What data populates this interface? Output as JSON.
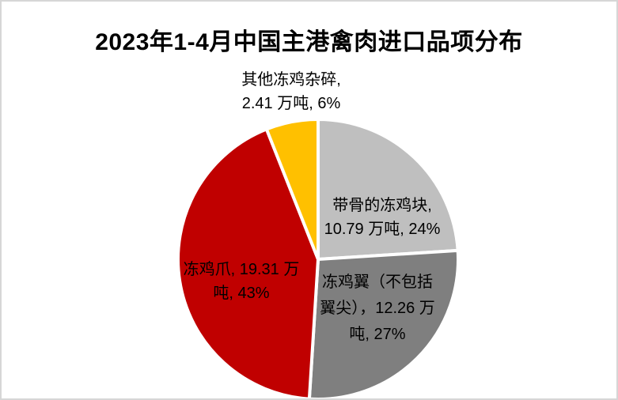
{
  "chart_data": {
    "type": "pie",
    "title": "2023年1-4月中国主港禽肉进口品项分布",
    "value_unit": "万吨",
    "direction": "clockwise",
    "start_angle_deg": 0,
    "legend_position": "none",
    "label_format": "name, value 万吨, percent%",
    "background_color": "#ffffff",
    "slice_border_color": "#ffffff",
    "slices": [
      {
        "name": "带骨的冻鸡块",
        "value": 10.79,
        "percent": 24,
        "color": "#BFBFBF",
        "label_lines": [
          "带骨的冻鸡块,",
          "10.79 万吨, 24%"
        ]
      },
      {
        "name": "冻鸡翼（不包括翼尖）",
        "value": 12.26,
        "percent": 27,
        "color": "#7F7F7F",
        "label_lines": [
          "冻鸡翼（不包括",
          "翼尖），12.26 万",
          "吨, 27%"
        ]
      },
      {
        "name": "冻鸡爪",
        "value": 19.31,
        "percent": 43,
        "color": "#C00000",
        "label_lines": [
          "冻鸡爪, 19.31 万",
          "吨, 43%"
        ]
      },
      {
        "name": "其他冻鸡杂碎",
        "value": 2.41,
        "percent": 6,
        "color": "#FFC000",
        "label_lines": [
          "其他冻鸡杂碎,",
          "2.41 万吨, 6%"
        ]
      }
    ]
  }
}
